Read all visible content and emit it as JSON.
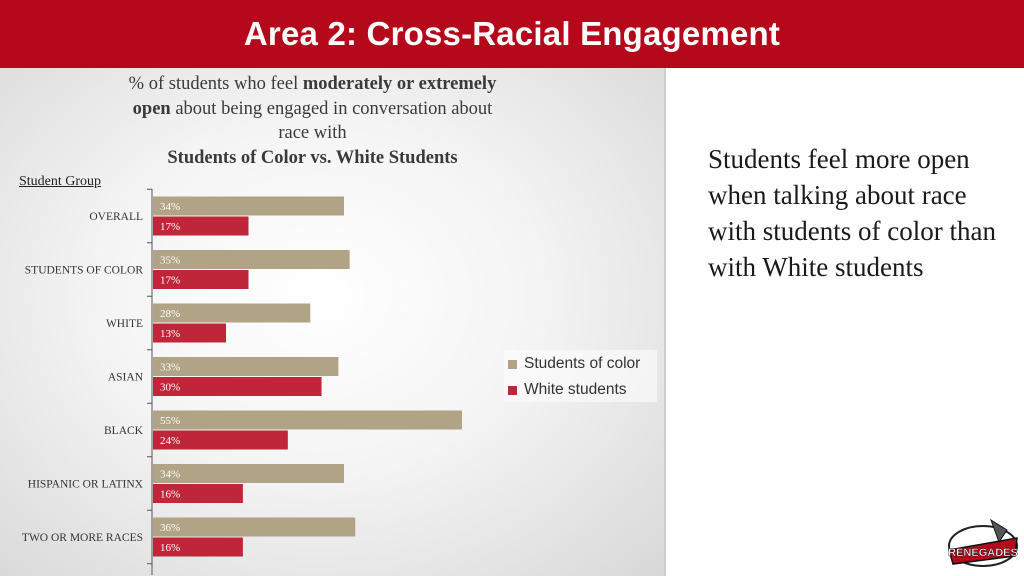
{
  "slide_title": "Area 2: Cross-Racial Engagement",
  "chart_title": {
    "part1": "% of students who feel ",
    "bold1": "moderately or extremely",
    "bold2": "open",
    "part2": " about being engaged in conversation about",
    "line3": "race with",
    "line4": "Students of Color vs. White Students"
  },
  "group_axis_label": "Student Group",
  "side_text": "Students feel more open when talking about race with students of color than with White students",
  "logo_text": "RENEGADES",
  "colors": {
    "header": "#b5091b",
    "students_of_color": "#b0a386",
    "white_students": "#c0263a"
  },
  "chart_data": {
    "type": "bar",
    "orientation": "horizontal",
    "categories": [
      "OVERALL",
      "STUDENTS OF COLOR",
      "WHITE",
      "ASIAN",
      "BLACK",
      "HISPANIC OR LATINX",
      "TWO OR MORE RACES"
    ],
    "series": [
      {
        "name": "Students of color",
        "values": [
          34,
          35,
          28,
          33,
          55,
          34,
          36
        ],
        "labels": [
          "34%",
          "35%",
          "28%",
          "33%",
          "55%",
          "34%",
          "36%"
        ]
      },
      {
        "name": "White students",
        "values": [
          17,
          17,
          13,
          30,
          24,
          16,
          16
        ],
        "labels": [
          "17%",
          "17%",
          "13%",
          "30%",
          "24%",
          "16%",
          "16%"
        ]
      }
    ],
    "legend": {
      "entries": [
        "Students of color",
        "White students"
      ],
      "position": "right"
    },
    "grid": false
  }
}
